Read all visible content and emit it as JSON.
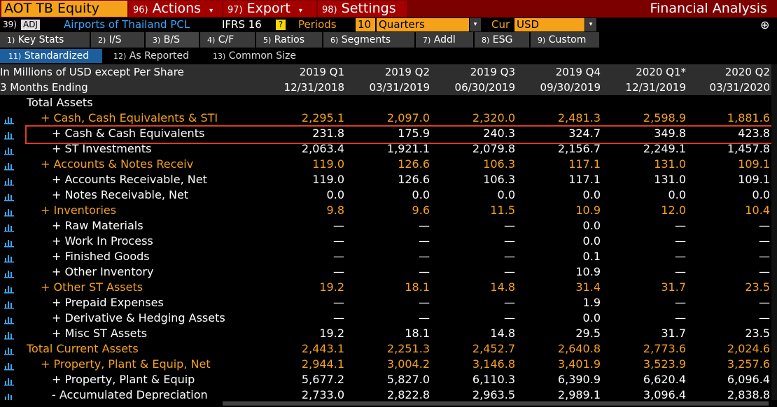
{
  "topbar": {
    "ticker": "AOT TB Equity",
    "menus": [
      {
        "num": "96)",
        "label": "Actions"
      },
      {
        "num": "97)",
        "label": "Export"
      },
      {
        "num": "98)",
        "label": "Settings"
      }
    ],
    "title": "Financial Analysis"
  },
  "infobar": {
    "num": "39)",
    "adj": "ADJ",
    "company": "Airports of Thailand PCL",
    "standard": "IFRS 16",
    "help": "?",
    "periods_label": "Periods",
    "periods_value": "10",
    "periods_unit": "Quarters",
    "cur_label": "Cur",
    "cur_value": "USD"
  },
  "tabs": [
    {
      "num": "1)",
      "label": "Key Stats"
    },
    {
      "num": "2)",
      "label": "I/S"
    },
    {
      "num": "3)",
      "label": "B/S"
    },
    {
      "num": "4)",
      "label": "C/F"
    },
    {
      "num": "5)",
      "label": "Ratios"
    },
    {
      "num": "6)",
      "label": "Segments"
    },
    {
      "num": "7)",
      "label": "Addl"
    },
    {
      "num": "8)",
      "label": "ESG"
    },
    {
      "num": "9)",
      "label": "Custom"
    }
  ],
  "subtabs": [
    {
      "num": "11)",
      "label": "Standardized"
    },
    {
      "num": "12)",
      "label": "As Reported"
    },
    {
      "num": "13)",
      "label": "Common Size"
    }
  ],
  "header": {
    "units_label": "In Millions of USD except Per Share",
    "period_label": "3 Months Ending",
    "periods": [
      "2019 Q1",
      "2019 Q2",
      "2019 Q3",
      "2019 Q4",
      "2020 Q1*",
      "2020 Q2"
    ],
    "dates": [
      "12/31/2018",
      "03/31/2019",
      "06/30/2019",
      "09/30/2019",
      "12/31/2019",
      "03/31/2020"
    ]
  },
  "rows": [
    {
      "label": "Total Assets",
      "indent": 0,
      "color": "#ffffff",
      "icon": false,
      "values": [
        "",
        "",
        "",
        "",
        "",
        ""
      ]
    },
    {
      "label": "+ Cash, Cash Equivalents & STI",
      "indent": 1,
      "color": "#f5a21b",
      "icon": true,
      "values": [
        "2,295.1",
        "2,097.0",
        "2,320.0",
        "2,481.3",
        "2,598.9",
        "1,881.6"
      ]
    },
    {
      "label": "+ Cash & Cash Equivalents",
      "indent": 2,
      "color": "#ffffff",
      "icon": true,
      "values": [
        "231.8",
        "175.9",
        "240.3",
        "324.7",
        "349.8",
        "423.8"
      ]
    },
    {
      "label": "+ ST Investments",
      "indent": 2,
      "color": "#ffffff",
      "icon": true,
      "values": [
        "2,063.4",
        "1,921.1",
        "2,079.8",
        "2,156.7",
        "2,249.1",
        "1,457.8"
      ]
    },
    {
      "label": "+ Accounts & Notes Receiv",
      "indent": 1,
      "color": "#f5a21b",
      "icon": true,
      "values": [
        "119.0",
        "126.6",
        "106.3",
        "117.1",
        "131.0",
        "109.1"
      ]
    },
    {
      "label": "+ Accounts Receivable, Net",
      "indent": 2,
      "color": "#ffffff",
      "icon": true,
      "values": [
        "119.0",
        "126.6",
        "106.3",
        "117.1",
        "131.0",
        "109.1"
      ]
    },
    {
      "label": "+ Notes Receivable, Net",
      "indent": 2,
      "color": "#ffffff",
      "icon": true,
      "values": [
        "0.0",
        "0.0",
        "0.0",
        "0.0",
        "0.0",
        "0.0"
      ]
    },
    {
      "label": "+ Inventories",
      "indent": 1,
      "color": "#f5a21b",
      "icon": true,
      "values": [
        "9.8",
        "9.6",
        "11.5",
        "10.9",
        "12.0",
        "10.4"
      ]
    },
    {
      "label": "+ Raw Materials",
      "indent": 2,
      "color": "#ffffff",
      "icon": true,
      "values": [
        "—",
        "—",
        "—",
        "0.0",
        "—",
        "—"
      ]
    },
    {
      "label": "+ Work In Process",
      "indent": 2,
      "color": "#ffffff",
      "icon": true,
      "values": [
        "—",
        "—",
        "—",
        "0.0",
        "—",
        "—"
      ]
    },
    {
      "label": "+ Finished Goods",
      "indent": 2,
      "color": "#ffffff",
      "icon": true,
      "values": [
        "—",
        "—",
        "—",
        "0.1",
        "—",
        "—"
      ]
    },
    {
      "label": "+ Other Inventory",
      "indent": 2,
      "color": "#ffffff",
      "icon": true,
      "values": [
        "—",
        "—",
        "—",
        "10.9",
        "—",
        "—"
      ]
    },
    {
      "label": "+ Other ST Assets",
      "indent": 1,
      "color": "#f5a21b",
      "icon": true,
      "values": [
        "19.2",
        "18.1",
        "14.8",
        "31.4",
        "31.7",
        "23.5"
      ]
    },
    {
      "label": "+ Prepaid Expenses",
      "indent": 2,
      "color": "#ffffff",
      "icon": true,
      "values": [
        "—",
        "—",
        "—",
        "1.9",
        "—",
        "—"
      ]
    },
    {
      "label": "+ Derivative & Hedging Assets",
      "indent": 2,
      "color": "#ffffff",
      "icon": true,
      "values": [
        "—",
        "—",
        "—",
        "0.0",
        "—",
        "—"
      ]
    },
    {
      "label": "+ Misc ST Assets",
      "indent": 2,
      "color": "#ffffff",
      "icon": true,
      "values": [
        "19.2",
        "18.1",
        "14.8",
        "29.5",
        "31.7",
        "23.5"
      ]
    },
    {
      "label": "Total Current Assets",
      "indent": 0,
      "color": "#f5a21b",
      "icon": true,
      "values": [
        "2,443.1",
        "2,251.3",
        "2,452.7",
        "2,640.8",
        "2,773.6",
        "2,024.6"
      ]
    },
    {
      "label": "+ Property, Plant & Equip, Net",
      "indent": 1,
      "color": "#f5a21b",
      "icon": true,
      "values": [
        "2,944.1",
        "3,004.2",
        "3,146.8",
        "3,401.9",
        "3,523.9",
        "3,257.6"
      ]
    },
    {
      "label": "+ Property, Plant & Equip",
      "indent": 2,
      "color": "#ffffff",
      "icon": true,
      "values": [
        "5,677.2",
        "5,827.0",
        "6,110.3",
        "6,390.9",
        "6,620.4",
        "6,096.4"
      ]
    },
    {
      "label": "- Accumulated Depreciation",
      "indent": 2,
      "color": "#ffffff",
      "icon": true,
      "values": [
        "2,733.0",
        "2,822.8",
        "2,963.5",
        "2,989.1",
        "3,096.4",
        "2,838.8"
      ]
    }
  ],
  "colors": {
    "amber": "#f5a21b",
    "highlight": "#e03c1e",
    "icon": "#3ba6ff"
  }
}
